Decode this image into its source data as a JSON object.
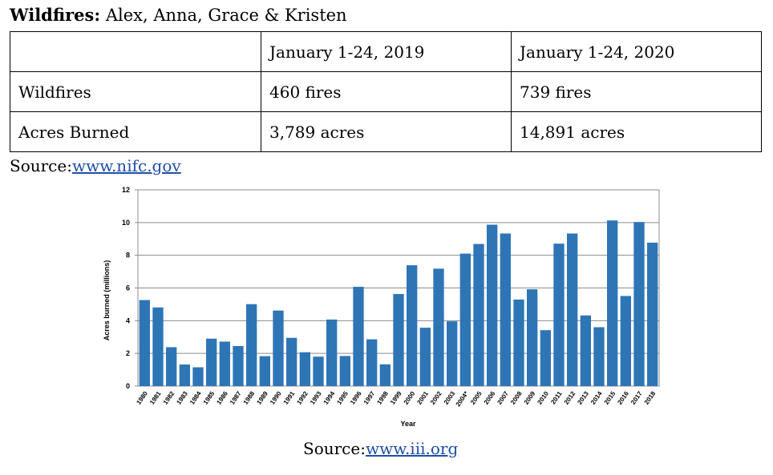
{
  "header": {
    "bold": "Wildfires:",
    "rest": "Alex, Anna, Grace & Kristen"
  },
  "table": {
    "rows": [
      [
        "",
        "January 1-24, 2019",
        "January 1-24, 2020"
      ],
      [
        "Wildfires",
        "460 fires",
        "739 fires"
      ],
      [
        "Acres Burned",
        "3,789 acres",
        "14,891 acres"
      ]
    ]
  },
  "source1": {
    "label": "Source:",
    "link": "www.nifc.gov"
  },
  "source2": {
    "label": "Source:",
    "link": "www.iii.org"
  },
  "chart_data": {
    "type": "bar",
    "xlabel": "Year",
    "ylabel": "Acres burned (millions)",
    "ylim": [
      0,
      12
    ],
    "yticks": [
      0,
      2,
      4,
      6,
      8,
      10,
      12
    ],
    "grid": true,
    "bar_color": "#2e75b6",
    "categories": [
      "1980",
      "1981",
      "1982",
      "1983",
      "1984",
      "1985",
      "1986",
      "1987",
      "1988",
      "1989",
      "1990",
      "1991",
      "1992",
      "1993",
      "1994",
      "1995",
      "1996",
      "1997",
      "1998",
      "1999",
      "2000",
      "2001",
      "2002",
      "2003",
      "2004*",
      "2005",
      "2006",
      "2007",
      "2008",
      "2009",
      "2010",
      "2011",
      "2012",
      "2013",
      "2014",
      "2015",
      "2016",
      "2017",
      "2018"
    ],
    "values": [
      5.26,
      4.81,
      2.38,
      1.32,
      1.15,
      2.9,
      2.72,
      2.45,
      5.01,
      1.83,
      4.62,
      2.95,
      2.07,
      1.8,
      4.07,
      1.84,
      6.07,
      2.86,
      1.33,
      5.63,
      7.39,
      3.57,
      7.18,
      3.96,
      8.1,
      8.69,
      9.87,
      9.33,
      5.29,
      5.92,
      3.42,
      8.71,
      9.33,
      4.32,
      3.6,
      10.13,
      5.51,
      10.03,
      8.77
    ]
  }
}
